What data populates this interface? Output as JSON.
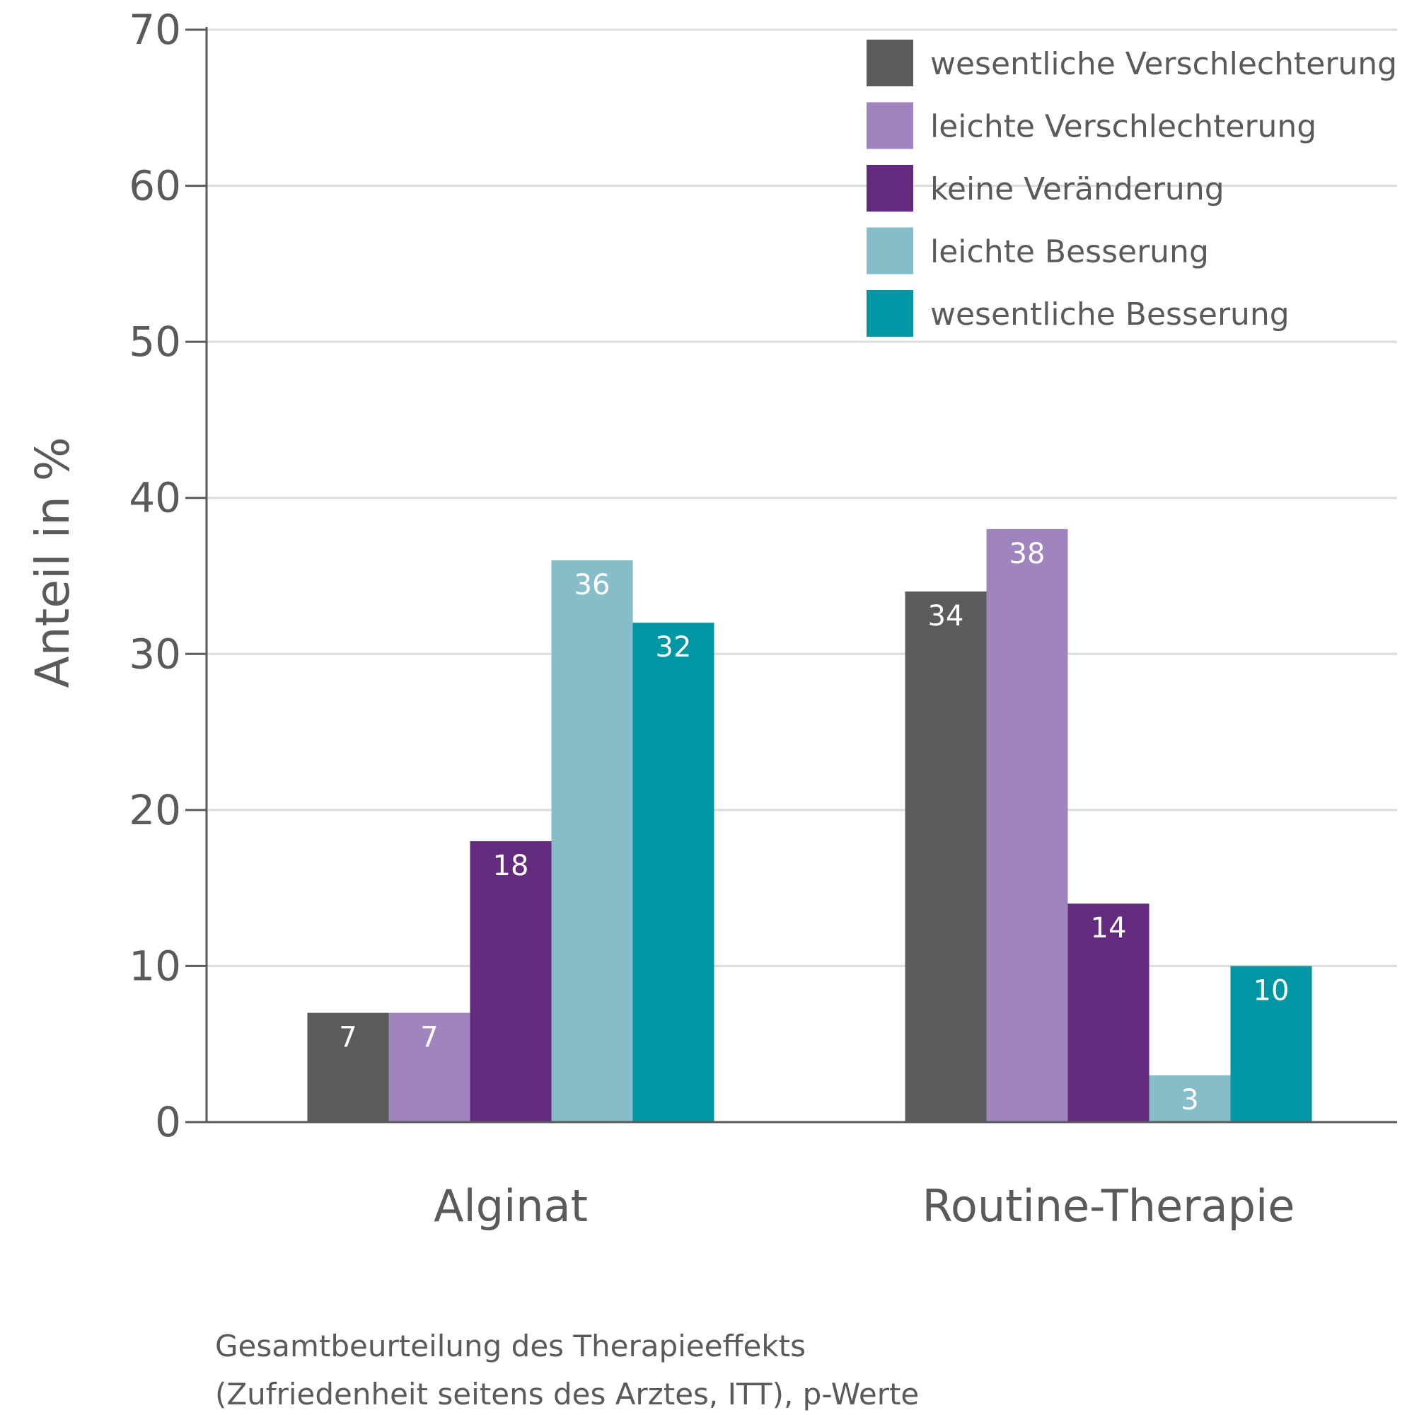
{
  "chart_data": {
    "type": "bar",
    "categories": [
      "Alginat",
      "Routine-Therapie"
    ],
    "series": [
      {
        "name": "wesentliche Verschlechterung",
        "values": [
          7,
          34
        ],
        "color": "#5b5b5b"
      },
      {
        "name": "leichte Verschlechterung",
        "values": [
          7,
          38
        ],
        "color": "#a084be"
      },
      {
        "name": "keine Veränderung",
        "values": [
          18,
          14
        ],
        "color": "#622b7e"
      },
      {
        "name": "leichte Besserung",
        "values": [
          36,
          3
        ],
        "color": "#86bdc8"
      },
      {
        "name": "wesentliche Besserung",
        "values": [
          32,
          10
        ],
        "color": "#0096a3"
      }
    ],
    "data_labels": [
      [
        "7",
        "34"
      ],
      [
        "7",
        "38"
      ],
      [
        "18",
        "14"
      ],
      [
        "36",
        "3"
      ],
      [
        "32",
        "10"
      ]
    ],
    "ylabel": "Anteil in %",
    "ylim": [
      0,
      70
    ],
    "yticks": [
      0,
      10,
      20,
      30,
      40,
      50,
      60,
      70
    ],
    "grid": true,
    "legend_position": "top-right",
    "caption_lines": [
      "Gesamtbeurteilung des Therapieeffekts",
      "(Zufriedenheit seitens des Arztes, ITT), p-Werte"
    ]
  }
}
